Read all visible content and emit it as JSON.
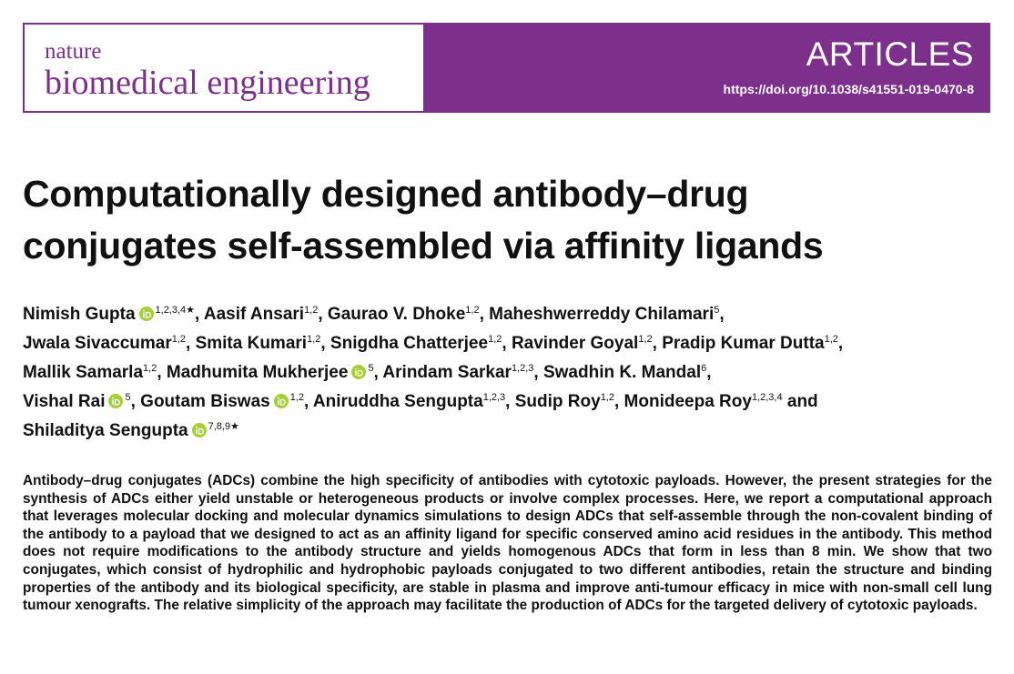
{
  "header": {
    "journal_small": "nature",
    "journal_large": "biomedical engineering",
    "section": "ARTICLES",
    "doi": "https://doi.org/10.1038/s41551-019-0470-8"
  },
  "title_lines": [
    "Computationally designed antibody–drug",
    "conjugates self-assembled via affinity ligands"
  ],
  "author_lines": [
    [
      {
        "name": "Nimish Gupta",
        "orcid": true,
        "affiliations": "1,2,3,4★",
        "after": ","
      },
      {
        "name": "Aasif Ansari",
        "orcid": false,
        "affiliations": "1,2",
        "after": ","
      },
      {
        "name": "Gaurao V. Dhoke",
        "orcid": false,
        "affiliations": "1,2",
        "after": ","
      },
      {
        "name": "Maheshwerreddy Chilamari",
        "orcid": false,
        "affiliations": "5",
        "after": ","
      }
    ],
    [
      {
        "name": "Jwala Sivaccumar",
        "orcid": false,
        "affiliations": "1,2",
        "after": ","
      },
      {
        "name": "Smita Kumari",
        "orcid": false,
        "affiliations": "1,2",
        "after": ","
      },
      {
        "name": "Snigdha Chatterjee",
        "orcid": false,
        "affiliations": "1,2",
        "after": ","
      },
      {
        "name": "Ravinder Goyal",
        "orcid": false,
        "affiliations": "1,2",
        "after": ","
      },
      {
        "name": "Pradip Kumar Dutta",
        "orcid": false,
        "affiliations": "1,2",
        "after": ","
      }
    ],
    [
      {
        "name": "Mallik Samarla",
        "orcid": false,
        "affiliations": "1,2",
        "after": ","
      },
      {
        "name": "Madhumita Mukherjee",
        "orcid": true,
        "affiliations": "5",
        "after": ","
      },
      {
        "name": "Arindam Sarkar",
        "orcid": false,
        "affiliations": "1,2,3",
        "after": ","
      },
      {
        "name": "Swadhin K. Mandal",
        "orcid": false,
        "affiliations": "6",
        "after": ","
      }
    ],
    [
      {
        "name": "Vishal Rai",
        "orcid": true,
        "affiliations": "5",
        "after": ","
      },
      {
        "name": "Goutam Biswas",
        "orcid": true,
        "affiliations": "1,2",
        "after": ","
      },
      {
        "name": "Aniruddha Sengupta",
        "orcid": false,
        "affiliations": "1,2,3",
        "after": ","
      },
      {
        "name": "Sudip Roy",
        "orcid": false,
        "affiliations": "1,2",
        "after": ","
      },
      {
        "name": "Monideepa Roy",
        "orcid": false,
        "affiliations": "1,2,3,4",
        "after": "and"
      }
    ],
    [
      {
        "name": "Shiladitya Sengupta",
        "orcid": true,
        "affiliations": "7,8,9★"
      }
    ]
  ],
  "abstract": "Antibody–drug conjugates (ADCs) combine the high specificity of antibodies with cytotoxic payloads. However, the present strategies for the synthesis of ADCs either yield unstable or heterogeneous products or involve complex processes. Here, we report a computational approach that leverages molecular docking and molecular dynamics simulations to design ADCs that self-assemble through the non-covalent binding of the antibody to a payload that we designed to act as an affinity ligand for specific conserved amino acid residues in the antibody. This method does not require modifications to the antibody structure and yields homogenous ADCs that form in less than 8 min. We show that two conjugates, which consist of hydrophilic and hydrophobic payloads conjugated to two different antibodies, retain the structure and binding properties of the antibody and its biological specificity, are stable in plasma and improve anti-tumour efficacy in mice with non-small cell lung tumour xenografts. The relative simplicity of the approach may facilitate the production of ADCs for the targeted delivery of cytotoxic payloads."
}
